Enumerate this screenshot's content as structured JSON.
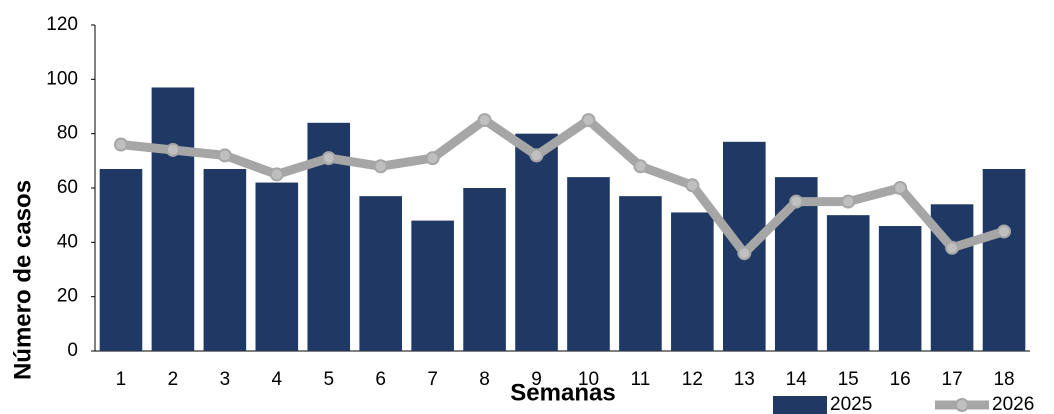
{
  "chart_data": {
    "type": "bar",
    "x_label": "Semanas",
    "y_label": "Número de casos",
    "categories": [
      "1",
      "2",
      "3",
      "4",
      "5",
      "6",
      "7",
      "8",
      "9",
      "10",
      "11",
      "12",
      "13",
      "14",
      "15",
      "16",
      "17",
      "18"
    ],
    "series": [
      {
        "name": "2025",
        "type": "bar",
        "color": "#203864",
        "values": [
          67,
          97,
          67,
          62,
          84,
          57,
          48,
          60,
          80,
          64,
          57,
          51,
          77,
          64,
          50,
          46,
          54,
          67
        ]
      },
      {
        "name": "2026",
        "type": "line",
        "color": "#a6a6a6",
        "values": [
          76,
          74,
          72,
          65,
          71,
          68,
          71,
          85,
          72,
          85,
          68,
          61,
          36,
          55,
          55,
          60,
          38,
          44
        ]
      }
    ],
    "ylim": [
      0,
      120
    ],
    "yticks": [
      0,
      20,
      40,
      60,
      80,
      100,
      120
    ],
    "grid": false,
    "legend": "bottom-right"
  }
}
